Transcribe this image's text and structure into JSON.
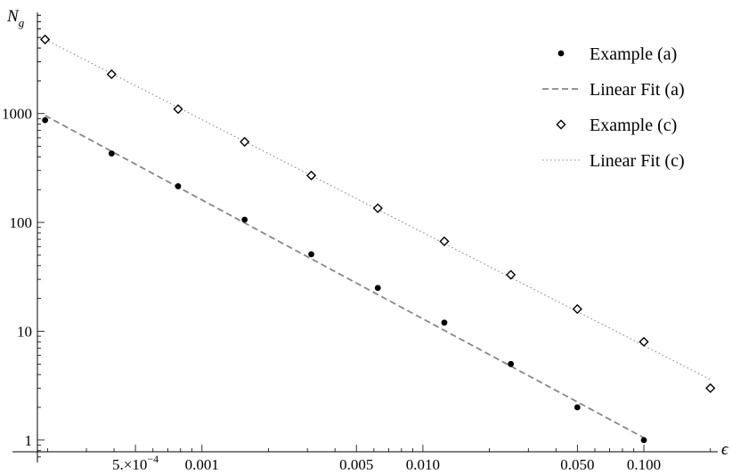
{
  "chart_data": {
    "type": "scatter",
    "x_scale": "log",
    "y_scale": "log",
    "xlabel": "ϵ",
    "ylabel_main": "N",
    "ylabel_sub": "g",
    "xlim": [
      0.00018,
      0.22
    ],
    "ylim": [
      0.6,
      8500
    ],
    "x_ticks": [
      {
        "value": 0.0005,
        "label_main": "5.×10",
        "label_sup": "−4"
      },
      {
        "value": 0.001,
        "label_main": "0.001",
        "label_sup": ""
      },
      {
        "value": 0.005,
        "label_main": "0.005",
        "label_sup": ""
      },
      {
        "value": 0.01,
        "label_main": "0.010",
        "label_sup": ""
      },
      {
        "value": 0.05,
        "label_main": "0.050",
        "label_sup": ""
      },
      {
        "value": 0.1,
        "label_main": "0.100",
        "label_sup": ""
      }
    ],
    "y_ticks": [
      {
        "value": 1,
        "label": "1"
      },
      {
        "value": 10,
        "label": "10"
      },
      {
        "value": 100,
        "label": "100"
      },
      {
        "value": 1000,
        "label": "1000"
      }
    ],
    "grid": false,
    "legend_position": "top-right",
    "series": [
      {
        "name": "Example (a)",
        "kind": "points",
        "marker": "filled-circle",
        "color": "#000000",
        "x": [
          0.000195,
          0.00039,
          0.00078,
          0.00156,
          0.003125,
          0.00625,
          0.0125,
          0.025,
          0.05,
          0.1
        ],
        "y": [
          870,
          430,
          215,
          106,
          51,
          25,
          12,
          5,
          2,
          1
        ]
      },
      {
        "name": "Linear Fit (a)",
        "kind": "line",
        "style": "dashed",
        "color": "#888888",
        "x": [
          0.000195,
          0.1
        ],
        "y": [
          960,
          1.05
        ]
      },
      {
        "name": "Example (c)",
        "kind": "points",
        "marker": "open-diamond",
        "color": "#000000",
        "x": [
          0.000195,
          0.00039,
          0.00078,
          0.00156,
          0.003125,
          0.00625,
          0.0125,
          0.025,
          0.05,
          0.1,
          0.2
        ],
        "y": [
          4800,
          2300,
          1100,
          550,
          270,
          135,
          67,
          33,
          16,
          8,
          3
        ]
      },
      {
        "name": "Linear Fit (c)",
        "kind": "line",
        "style": "dotted",
        "color": "#888888",
        "x": [
          0.000195,
          0.2
        ],
        "y": [
          4800,
          3.6
        ]
      }
    ]
  }
}
